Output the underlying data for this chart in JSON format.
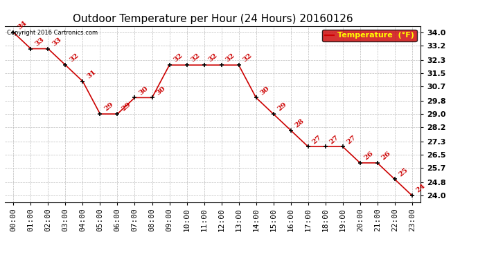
{
  "title": "Outdoor Temperature per Hour (24 Hours) 20160126",
  "copyright": "Copyright 2016 Cartronics.com",
  "legend_label": "Temperature  (°F)",
  "hours": [
    "00:00",
    "01:00",
    "02:00",
    "03:00",
    "04:00",
    "05:00",
    "06:00",
    "07:00",
    "08:00",
    "09:00",
    "10:00",
    "11:00",
    "12:00",
    "13:00",
    "14:00",
    "15:00",
    "16:00",
    "17:00",
    "18:00",
    "19:00",
    "20:00",
    "21:00",
    "22:00",
    "23:00"
  ],
  "temps": [
    34,
    33,
    33,
    32,
    31,
    29,
    29,
    30,
    30,
    32,
    32,
    32,
    32,
    32,
    30,
    29,
    28,
    27,
    27,
    27,
    26,
    26,
    25,
    24
  ],
  "ylim_min": 23.6,
  "ylim_max": 34.4,
  "yticks": [
    24.0,
    24.8,
    25.7,
    26.5,
    27.3,
    28.2,
    29.0,
    29.8,
    30.7,
    31.5,
    32.3,
    33.2,
    34.0
  ],
  "line_color": "#cc0000",
  "marker_color": "#000000",
  "bg_color": "#ffffff",
  "grid_color": "#bbbbbb",
  "legend_bg": "#cc0000",
  "legend_text_color": "#ffff00",
  "title_color": "#000000",
  "copyright_color": "#000000",
  "annotation_color": "#cc0000",
  "title_fontsize": 11,
  "tick_fontsize": 8,
  "annotation_fontsize": 7.5
}
